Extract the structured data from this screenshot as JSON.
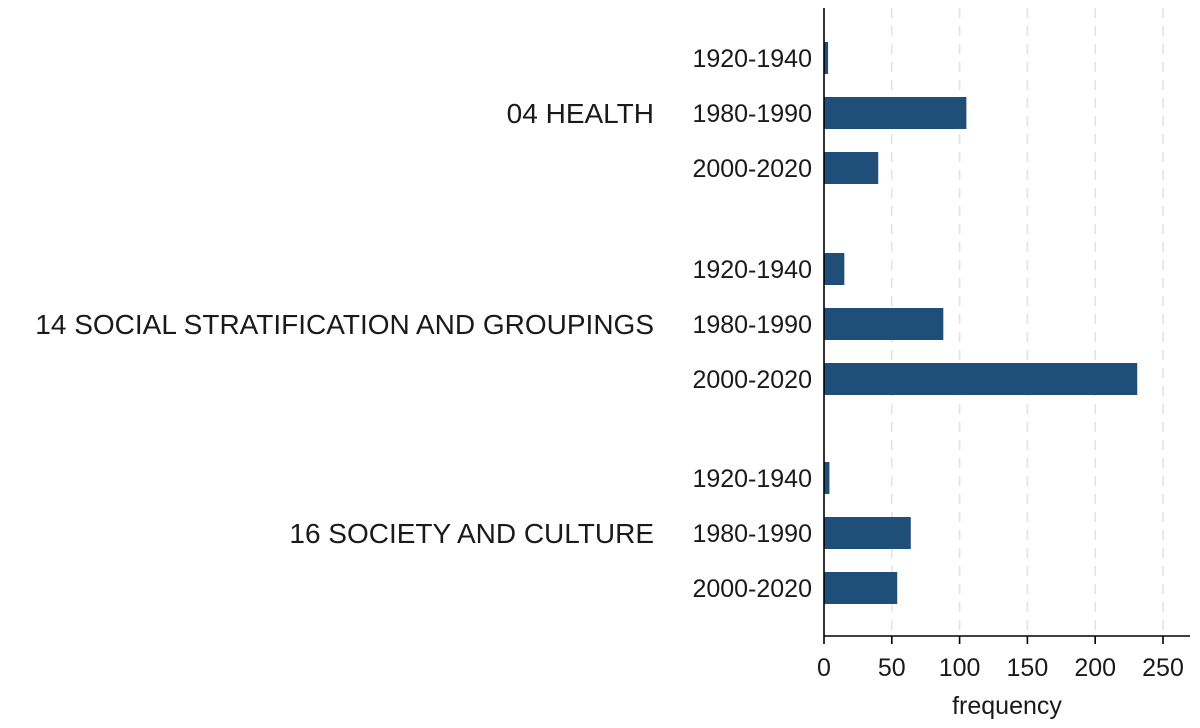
{
  "chart_data": {
    "type": "bar",
    "orientation": "horizontal",
    "title": "",
    "xlabel": "frequency",
    "ylabel": "",
    "xlim": [
      0,
      270
    ],
    "xticks": [
      0,
      50,
      100,
      150,
      200,
      250
    ],
    "grid": "vertical dashed",
    "bar_color": "#1f4e79",
    "groups": [
      {
        "name": "04 HEALTH",
        "bars": [
          {
            "label": "1920-1940",
            "value": 3
          },
          {
            "label": "1980-1990",
            "value": 105
          },
          {
            "label": "2000-2020",
            "value": 40
          }
        ]
      },
      {
        "name": "14 SOCIAL STRATIFICATION AND GROUPINGS",
        "bars": [
          {
            "label": "1920-1940",
            "value": 15
          },
          {
            "label": "1980-1990",
            "value": 88
          },
          {
            "label": "2000-2020",
            "value": 231
          }
        ]
      },
      {
        "name": "16 SOCIETY AND CULTURE",
        "bars": [
          {
            "label": "1920-1940",
            "value": 4
          },
          {
            "label": "1980-1990",
            "value": 64
          },
          {
            "label": "2000-2020",
            "value": 54
          }
        ]
      }
    ]
  }
}
